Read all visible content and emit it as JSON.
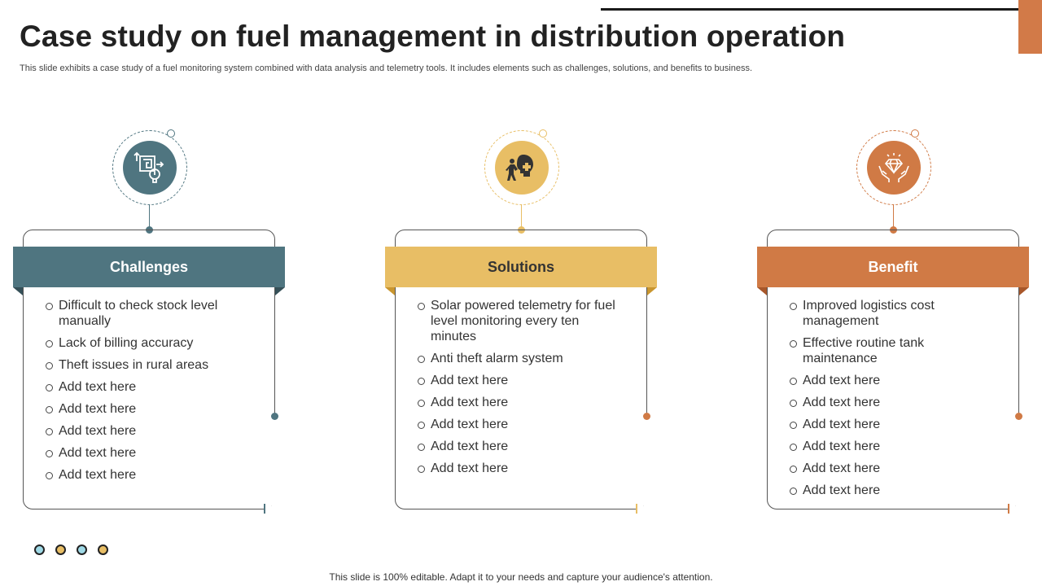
{
  "slide": {
    "title": "Case study on fuel management in distribution operation",
    "subtitle": "This slide exhibits a case study of a fuel monitoring system combined with data analysis and telemetry tools. It includes elements such as challenges, solutions, and benefits to business.",
    "footer": "This slide is 100% editable. Adapt it to your needs and capture your audience's attention."
  },
  "colors": {
    "teal": "#4f7580",
    "gold": "#e8be65",
    "orange": "#d07a45",
    "corner": "#d27a48",
    "dot_fills": [
      "#9fd9e6",
      "#e8be65",
      "#9fd9e6",
      "#e8be65"
    ]
  },
  "columns": [
    {
      "heading": "Challenges",
      "icon": "maze-bulb-icon",
      "items": [
        "Difficult to check stock level manually",
        "Lack of billing accuracy",
        "Theft issues in rural areas",
        "Add text here",
        "Add text here",
        "Add text here",
        "Add text here",
        "Add text here"
      ]
    },
    {
      "heading": "Solutions",
      "icon": "puzzle-head-icon",
      "items": [
        "Solar powered telemetry for fuel level monitoring every ten minutes",
        "Anti theft alarm system",
        "Add text here",
        "Add text here",
        "Add text here",
        "Add text here",
        "Add text here"
      ]
    },
    {
      "heading": "Benefit",
      "icon": "hands-diamond-icon",
      "items": [
        "Improved logistics cost management",
        "Effective routine tank maintenance",
        "Add text here",
        "Add text here",
        "Add text here",
        "Add text here",
        "Add text here",
        "Add text here"
      ]
    }
  ]
}
